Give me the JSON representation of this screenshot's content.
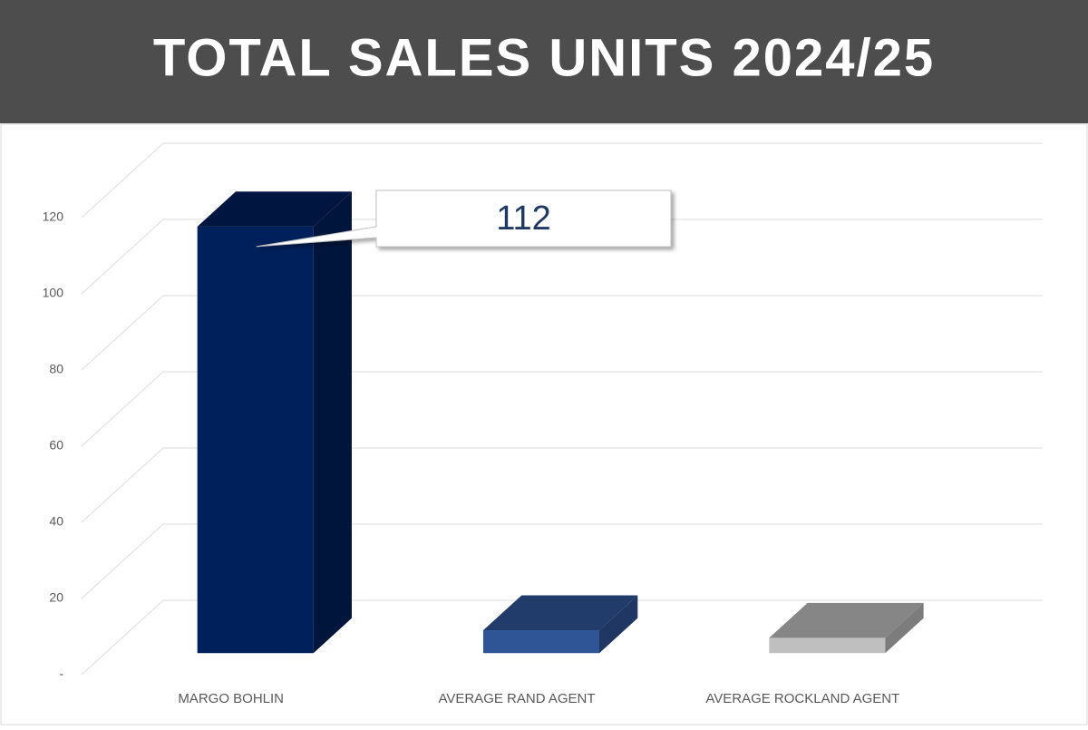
{
  "chart_data": {
    "type": "bar3d",
    "title": "TOTAL SALES UNITS 2024/25",
    "categories": [
      "MARGO BOHLIN",
      "AVERAGE RAND AGENT",
      "AVERAGE ROCKLAND AGENT"
    ],
    "values": [
      112,
      6,
      4
    ],
    "colors": [
      "#00205b",
      "#2f5597",
      "#bfbfbf"
    ],
    "callout_index": 0,
    "ylim": [
      0,
      120
    ],
    "yticks": [
      {
        "value": 0,
        "label": "-"
      },
      20,
      40,
      60,
      80,
      100,
      120
    ],
    "grid": true
  }
}
